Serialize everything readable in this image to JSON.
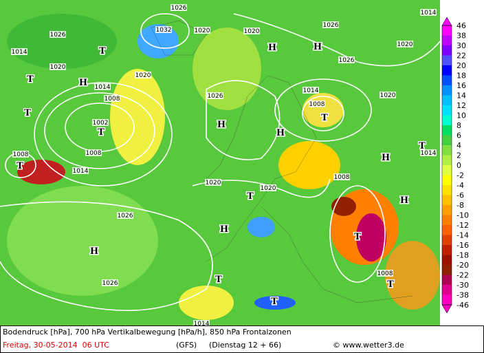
{
  "map": {
    "isobar_labels": [
      1026,
      1014,
      1026,
      1032,
      1020,
      1020,
      1026,
      1014,
      1020,
      1020,
      1020,
      1026,
      1014,
      1008,
      1026,
      1014,
      1020,
      1008,
      1002,
      1008,
      1008,
      1014,
      1014,
      1020,
      1020,
      1008,
      1026,
      1026,
      1008,
      1014
    ],
    "centers": [
      "T",
      "H",
      "H",
      "T",
      "H",
      "T",
      "H",
      "T",
      "T",
      "H",
      "T",
      "H",
      "T",
      "T",
      "H",
      "H",
      "T",
      "H",
      "T",
      "T",
      "T"
    ]
  },
  "legend": {
    "labels": [
      46,
      38,
      30,
      22,
      20,
      18,
      16,
      14,
      12,
      10,
      8,
      6,
      4,
      2,
      0,
      -2,
      -4,
      -6,
      -8,
      -10,
      -12,
      -14,
      -16,
      -18,
      -20,
      -22,
      -30,
      -38,
      -46
    ],
    "colors": [
      "#ff00ff",
      "#c000ff",
      "#8000ff",
      "#5050ff",
      "#0000ff",
      "#0050ff",
      "#0090ff",
      "#00c0ff",
      "#00e0ff",
      "#00ffd0",
      "#00e060",
      "#40d040",
      "#80e040",
      "#b0f040",
      "#e0ff40",
      "#ffff00",
      "#ffe000",
      "#ffc000",
      "#ffa000",
      "#ff8000",
      "#ff6000",
      "#e04000",
      "#c02000",
      "#a01000",
      "#902000",
      "#b00050",
      "#e00090",
      "#ff00c0"
    ]
  },
  "footer": {
    "line1": "Bodendruck [hPa], 700 hPa Vertikalbewegung [hPa/h], 850 hPa Frontalzonen",
    "date": "Freitag, 30-05-2014  06 UTC",
    "model": "(GFS)",
    "run": "(Dienstag 12 + 66)",
    "credit": "© www.wetter3.de"
  }
}
